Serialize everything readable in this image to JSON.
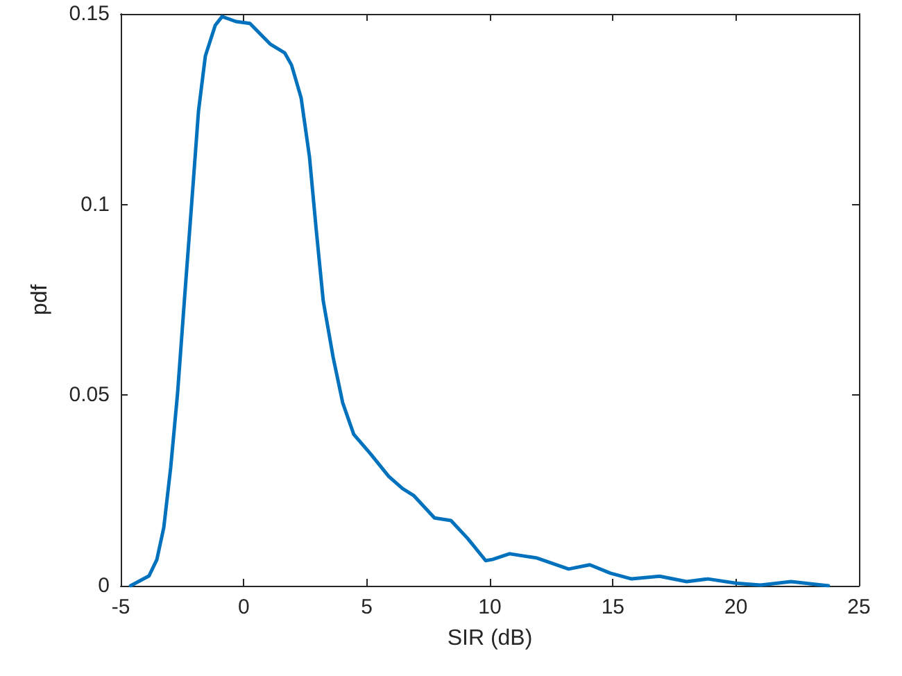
{
  "chart_data": {
    "type": "line",
    "xlabel": "SIR (dB)",
    "ylabel": "pdf",
    "xlim": [
      -5,
      25
    ],
    "xticks": [
      -5,
      0,
      5,
      10,
      15,
      20,
      25
    ],
    "ylim": [
      0,
      0.15
    ],
    "yticks": [
      0,
      0.05,
      0.1,
      0.15
    ],
    "marker": "none",
    "line_style": "solid",
    "series": [
      {
        "color": "#0072bd",
        "x": [
          -4.6,
          -3.85,
          -3.53,
          -3.25,
          -2.97,
          -2.69,
          -2.4,
          -2.12,
          -1.84,
          -1.56,
          -1.16,
          -0.88,
          -0.32,
          0.25,
          1.09,
          1.66,
          1.94,
          2.33,
          2.67,
          2.95,
          3.23,
          3.63,
          4.02,
          4.47,
          5.15,
          5.89,
          6.45,
          6.9,
          7.75,
          8.42,
          9.1,
          9.83,
          10.1,
          10.8,
          11.9,
          13.2,
          14.06,
          14.9,
          15.76,
          16.9,
          18.0,
          18.86,
          20.0,
          21.0,
          22.24,
          23.76
        ],
        "values": [
          0,
          0.0026,
          0.0069,
          0.0153,
          0.031,
          0.0505,
          0.076,
          0.1,
          0.1245,
          0.139,
          0.147,
          0.1493,
          0.148,
          0.1475,
          0.142,
          0.1398,
          0.1366,
          0.128,
          0.1125,
          0.093,
          0.0747,
          0.06,
          0.048,
          0.0397,
          0.0346,
          0.0287,
          0.0255,
          0.0237,
          0.0178,
          0.0171,
          0.0124,
          0.0066,
          0.0069,
          0.0084,
          0.0073,
          0.0044,
          0.0055,
          0.0033,
          0.0018,
          0.0025,
          0.0011,
          0.0018,
          0.0007,
          0.0002,
          0.0011,
          0
        ]
      }
    ]
  }
}
